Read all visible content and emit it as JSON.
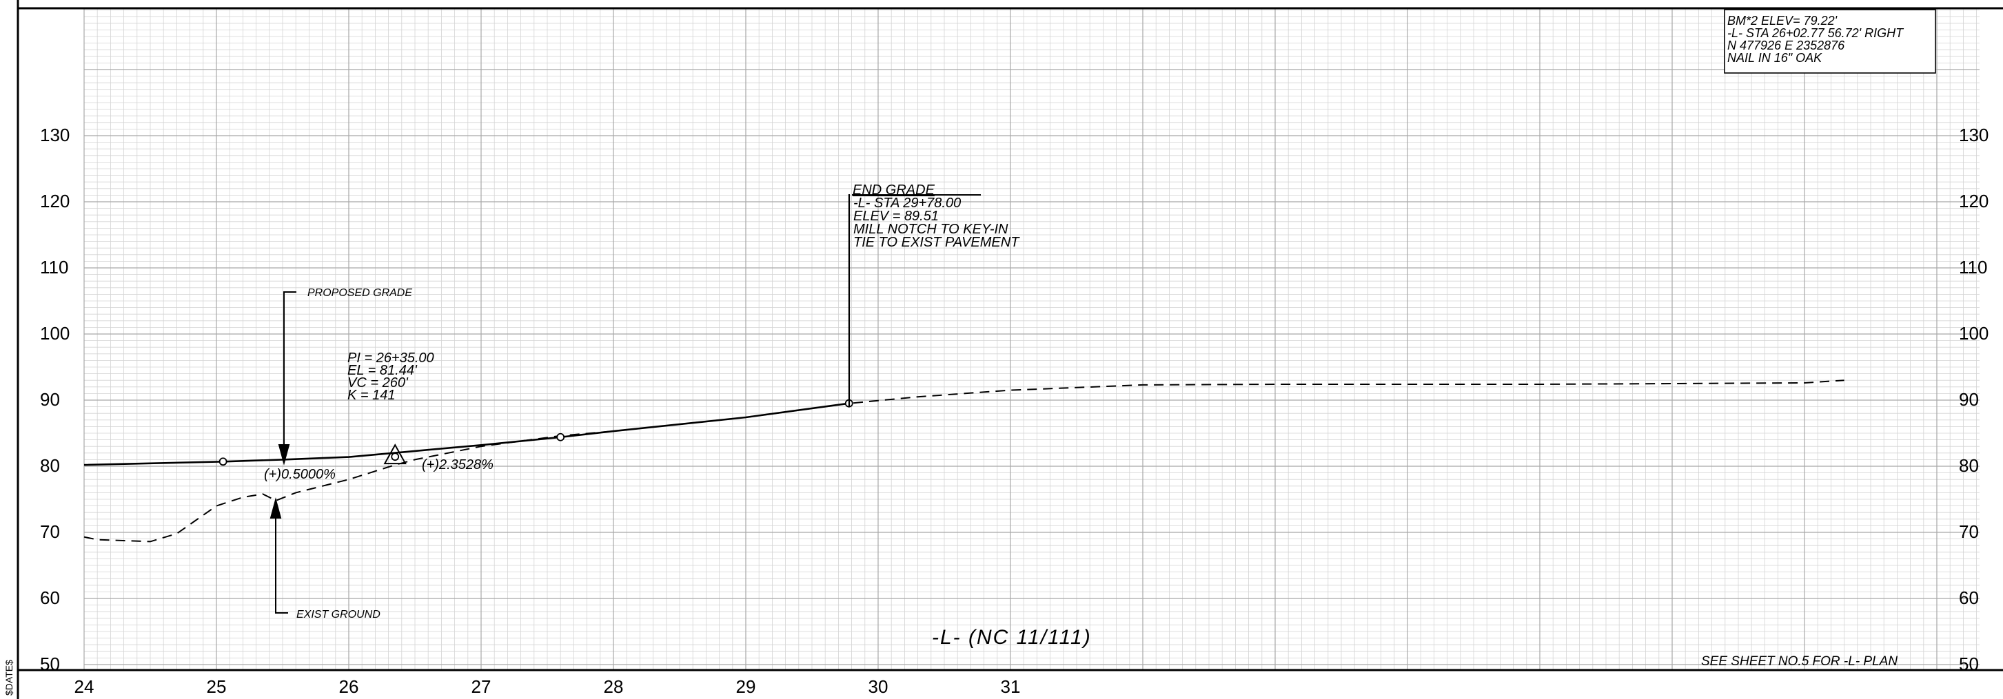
{
  "sheet": {
    "title": "-L- (NC 11/111)",
    "footer_note": "SEE SHEET NO.5 FOR -L- PLAN",
    "date_stamp": "$DATE$",
    "colors": {
      "ink": "#000000",
      "grid_minor": "#d4d4d4",
      "grid_major": "#a8a8a8",
      "paper": "#ffffff"
    }
  },
  "benchmark": {
    "lines": [
      "BM*2    ELEV= 79.22'",
      "-L- STA 26+02.77 56.72' RIGHT",
      "N 477926 E 2352876",
      "NAIL IN 16\" OAK"
    ]
  },
  "annotations": {
    "proposed_grade": "PROPOSED GRADE",
    "exist_ground": "EXIST GROUND",
    "grade_in": "(+)0.5000%",
    "grade_out": "(+)2.3528%",
    "pi_block": [
      "PI = 26+35.00",
      "EL = 81.44'",
      "VC = 260'",
      "K = 141"
    ],
    "end_grade": [
      "END GRADE",
      "-L- STA 29+78.00",
      "ELEV = 89.51",
      "MILL NOTCH TO KEY-IN",
      "TIE TO EXIST PAVEMENT"
    ]
  },
  "chart_data": {
    "type": "line",
    "title": "-L- (NC 11/111)",
    "x_ticks": [
      24,
      25,
      26,
      27,
      28,
      29,
      30,
      31
    ],
    "y_ticks": [
      50,
      60,
      70,
      80,
      90,
      100,
      110,
      120,
      130
    ],
    "xlim": [
      24,
      38.32
    ],
    "ylim": [
      50,
      150
    ],
    "grid": true,
    "series": [
      {
        "key": "proposed",
        "style": "solid",
        "points": [
          [
            24,
            80.2
          ],
          [
            25.05,
            80.7
          ],
          [
            25.5,
            81.0
          ],
          [
            26.0,
            81.4
          ],
          [
            26.5,
            82.3
          ],
          [
            27.0,
            83.2
          ],
          [
            27.6,
            84.4
          ],
          [
            28.0,
            85.3
          ],
          [
            29.0,
            87.4
          ],
          [
            29.78,
            89.51
          ]
        ]
      },
      {
        "key": "existing",
        "style": "dashed",
        "points": [
          [
            24,
            69.3
          ],
          [
            24.1,
            68.9
          ],
          [
            24.5,
            68.6
          ],
          [
            24.7,
            69.8
          ],
          [
            25.0,
            74.0
          ],
          [
            25.2,
            75.3
          ],
          [
            25.35,
            75.8
          ],
          [
            25.45,
            74.8
          ],
          [
            25.6,
            76.0
          ],
          [
            26.0,
            78.0
          ],
          [
            26.35,
            80.2
          ],
          [
            26.5,
            81.0
          ],
          [
            27.0,
            83.0
          ],
          [
            27.6,
            84.6
          ],
          [
            28.0,
            85.3
          ],
          [
            29.0,
            87.4
          ],
          [
            29.78,
            89.5
          ],
          [
            30.3,
            90.5
          ],
          [
            31.0,
            91.5
          ],
          [
            32.0,
            92.3
          ],
          [
            33.0,
            92.4
          ],
          [
            34.0,
            92.4
          ],
          [
            35.0,
            92.4
          ],
          [
            36.0,
            92.5
          ],
          [
            37.0,
            92.6
          ],
          [
            37.3,
            93.0
          ]
        ]
      }
    ],
    "markers": [
      {
        "kind": "circle",
        "x": 25.05,
        "y": 80.7
      },
      {
        "kind": "circle",
        "x": 27.6,
        "y": 84.4
      },
      {
        "kind": "circle",
        "x": 29.78,
        "y": 89.51
      },
      {
        "kind": "triangle",
        "x": 26.35,
        "y": 81.44
      }
    ]
  }
}
